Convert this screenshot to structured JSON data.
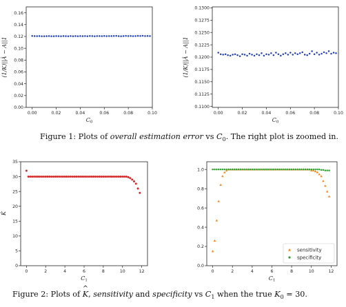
{
  "caption1": {
    "prefix": "Figure 1:  Plots of ",
    "emph": "overall estimation error",
    "middle": " vs ",
    "var": "C",
    "sub": "0",
    "suffix": ".  The right plot is zoomed in."
  },
  "caption2": {
    "prefix": "Figure 2:  Plots of ",
    "khat": "K",
    "comma": ", ",
    "emph1": "sensitivity",
    "and": " and ",
    "emph2": "specificity",
    "vs": " vs ",
    "var": "C",
    "sub": "1",
    "when": " when the true ",
    "kvar": "K",
    "ksub": "0",
    "eq": " = 30."
  },
  "chart_data": [
    {
      "id": "fig1-left",
      "type": "scatter",
      "xlabel": "C0",
      "ylabel": "(1/K)||Â − A||1",
      "xlim": [
        -0.005,
        0.1
      ],
      "ylim": [
        0.0,
        0.17
      ],
      "xticks": [
        "0.00",
        "0.02",
        "0.04",
        "0.06",
        "0.08",
        "0.10"
      ],
      "xtick_values": [
        0.0,
        0.02,
        0.04,
        0.06,
        0.08,
        0.1
      ],
      "yticks": [
        "0.00",
        "0.02",
        "0.04",
        "0.06",
        "0.08",
        "0.10",
        "0.12",
        "0.14",
        "0.16"
      ],
      "ytick_values": [
        0.0,
        0.02,
        0.04,
        0.06,
        0.08,
        0.1,
        0.12,
        0.14,
        0.16
      ],
      "series": [
        {
          "color": "#1f3fbf",
          "x": [
            0.0,
            0.002,
            0.004,
            0.006,
            0.008,
            0.01,
            0.012,
            0.014,
            0.016,
            0.018,
            0.02,
            0.022,
            0.024,
            0.026,
            0.028,
            0.03,
            0.032,
            0.034,
            0.036,
            0.038,
            0.04,
            0.042,
            0.044,
            0.046,
            0.048,
            0.05,
            0.052,
            0.054,
            0.056,
            0.058,
            0.06,
            0.062,
            0.064,
            0.066,
            0.068,
            0.07,
            0.072,
            0.074,
            0.076,
            0.078,
            0.08,
            0.082,
            0.084,
            0.086,
            0.088,
            0.09,
            0.092,
            0.094,
            0.096,
            0.098
          ],
          "y": [
            0.1208,
            0.1206,
            0.1205,
            0.1206,
            0.1204,
            0.1203,
            0.1205,
            0.1206,
            0.1204,
            0.1203,
            0.1206,
            0.1205,
            0.1203,
            0.1207,
            0.1205,
            0.1203,
            0.1206,
            0.1204,
            0.1207,
            0.1203,
            0.1206,
            0.1205,
            0.1207,
            0.1204,
            0.1208,
            0.1206,
            0.1203,
            0.1206,
            0.1207,
            0.1205,
            0.1208,
            0.1205,
            0.1207,
            0.1206,
            0.1208,
            0.1209,
            0.1205,
            0.1204,
            0.1207,
            0.121,
            0.1206,
            0.1208,
            0.1205,
            0.1207,
            0.1209,
            0.1208,
            0.1211,
            0.1207,
            0.1208,
            0.1207
          ]
        }
      ]
    },
    {
      "id": "fig1-right",
      "type": "scatter",
      "xlabel": "C0",
      "ylabel": "(1/K)||Â − A||1",
      "xlim": [
        -0.005,
        0.1
      ],
      "ylim": [
        0.1098,
        0.1302
      ],
      "xticks": [
        "0.00",
        "0.02",
        "0.04",
        "0.06",
        "0.08",
        "0.10"
      ],
      "xtick_values": [
        0.0,
        0.02,
        0.04,
        0.06,
        0.08,
        0.1
      ],
      "yticks": [
        "0.1100",
        "0.1125",
        "0.1150",
        "0.1175",
        "0.1200",
        "0.1225",
        "0.1250",
        "0.1275",
        "0.1300"
      ],
      "ytick_values": [
        0.11,
        0.1125,
        0.115,
        0.1175,
        0.12,
        0.1225,
        0.125,
        0.1275,
        0.13
      ],
      "series": [
        {
          "color": "#1f3fbf",
          "x": [
            0.0,
            0.002,
            0.004,
            0.006,
            0.008,
            0.01,
            0.012,
            0.014,
            0.016,
            0.018,
            0.02,
            0.022,
            0.024,
            0.026,
            0.028,
            0.03,
            0.032,
            0.034,
            0.036,
            0.038,
            0.04,
            0.042,
            0.044,
            0.046,
            0.048,
            0.05,
            0.052,
            0.054,
            0.056,
            0.058,
            0.06,
            0.062,
            0.064,
            0.066,
            0.068,
            0.07,
            0.072,
            0.074,
            0.076,
            0.078,
            0.08,
            0.082,
            0.084,
            0.086,
            0.088,
            0.09,
            0.092,
            0.094,
            0.096,
            0.098
          ],
          "y": [
            0.1209,
            0.1206,
            0.1205,
            0.1206,
            0.1204,
            0.1203,
            0.1205,
            0.1206,
            0.1204,
            0.1202,
            0.1206,
            0.1205,
            0.1203,
            0.1207,
            0.1205,
            0.1203,
            0.1206,
            0.1204,
            0.1208,
            0.1203,
            0.1206,
            0.1205,
            0.1208,
            0.1204,
            0.1209,
            0.1206,
            0.1203,
            0.1206,
            0.1208,
            0.1205,
            0.1209,
            0.1205,
            0.1208,
            0.1206,
            0.1208,
            0.121,
            0.1205,
            0.1204,
            0.1207,
            0.1212,
            0.1206,
            0.1209,
            0.1205,
            0.1207,
            0.121,
            0.1208,
            0.1212,
            0.1207,
            0.1209,
            0.1208
          ]
        }
      ]
    },
    {
      "id": "fig2-left",
      "type": "scatter",
      "xlabel": "C1",
      "ylabel": "K̂",
      "xlim": [
        -0.6,
        12.6
      ],
      "ylim": [
        0,
        35
      ],
      "xticks": [
        "0",
        "2",
        "4",
        "6",
        "8",
        "10",
        "12"
      ],
      "xtick_values": [
        0,
        2,
        4,
        6,
        8,
        10,
        12
      ],
      "yticks": [
        "0",
        "5",
        "10",
        "15",
        "20",
        "25",
        "30",
        "35"
      ],
      "ytick_values": [
        0,
        5,
        10,
        15,
        20,
        25,
        30,
        35
      ],
      "series": [
        {
          "color": "#d62728",
          "x": [
            0.0,
            0.2,
            0.4,
            0.6,
            0.8,
            1.0,
            1.2,
            1.4,
            1.6,
            1.8,
            2.0,
            2.2,
            2.4,
            2.6,
            2.8,
            3.0,
            3.2,
            3.4,
            3.6,
            3.8,
            4.0,
            4.2,
            4.4,
            4.6,
            4.8,
            5.0,
            5.2,
            5.4,
            5.6,
            5.8,
            6.0,
            6.2,
            6.4,
            6.6,
            6.8,
            7.0,
            7.2,
            7.4,
            7.6,
            7.8,
            8.0,
            8.2,
            8.4,
            8.6,
            8.8,
            9.0,
            9.2,
            9.4,
            9.6,
            9.8,
            10.0,
            10.2,
            10.4,
            10.6,
            10.8,
            11.0,
            11.2,
            11.4,
            11.6,
            11.8
          ],
          "y": [
            32,
            30,
            30,
            30,
            30,
            30,
            30,
            30,
            30,
            30,
            30,
            30,
            30,
            30,
            30,
            30,
            30,
            30,
            30,
            30,
            30,
            30,
            30,
            30,
            30,
            30,
            30,
            30,
            30,
            30,
            30,
            30,
            30,
            30,
            30,
            30,
            30,
            30,
            30,
            30,
            30,
            30,
            30,
            30,
            30,
            30,
            30,
            30,
            30,
            30,
            30,
            30,
            30,
            29.8,
            29.5,
            29,
            28.4,
            27.6,
            26,
            24.5
          ]
        }
      ]
    },
    {
      "id": "fig2-right",
      "type": "scatter",
      "xlabel": "C1",
      "ylabel": "",
      "xlim": [
        -0.6,
        12.6
      ],
      "ylim": [
        0.0,
        1.08
      ],
      "xticks": [
        "0",
        "2",
        "4",
        "6",
        "8",
        "10",
        "12"
      ],
      "xtick_values": [
        0,
        2,
        4,
        6,
        8,
        10,
        12
      ],
      "yticks": [
        "0.0",
        "0.2",
        "0.4",
        "0.6",
        "0.8",
        "1.0"
      ],
      "ytick_values": [
        0.0,
        0.2,
        0.4,
        0.6,
        0.8,
        1.0
      ],
      "legend": "bottom-right",
      "series": [
        {
          "name": "sensitivity",
          "marker": "triangle",
          "color": "#ff7f0e",
          "x": [
            0.0,
            0.2,
            0.4,
            0.6,
            0.8,
            1.0,
            1.2,
            1.4,
            1.6,
            1.8,
            2.0,
            2.2,
            2.4,
            2.6,
            2.8,
            3.0,
            3.2,
            3.4,
            3.6,
            3.8,
            4.0,
            4.2,
            4.4,
            4.6,
            4.8,
            5.0,
            5.2,
            5.4,
            5.6,
            5.8,
            6.0,
            6.2,
            6.4,
            6.6,
            6.8,
            7.0,
            7.2,
            7.4,
            7.6,
            7.8,
            8.0,
            8.2,
            8.4,
            8.6,
            8.8,
            9.0,
            9.2,
            9.4,
            9.6,
            9.8,
            10.0,
            10.2,
            10.4,
            10.6,
            10.8,
            11.0,
            11.2,
            11.4,
            11.6,
            11.8
          ],
          "y": [
            0.15,
            0.26,
            0.47,
            0.67,
            0.84,
            0.93,
            0.97,
            0.99,
            1.0,
            1.0,
            1.0,
            1.0,
            1.0,
            1.0,
            1.0,
            1.0,
            1.0,
            1.0,
            1.0,
            1.0,
            1.0,
            1.0,
            1.0,
            1.0,
            1.0,
            1.0,
            1.0,
            1.0,
            1.0,
            1.0,
            1.0,
            1.0,
            1.0,
            1.0,
            1.0,
            1.0,
            1.0,
            1.0,
            1.0,
            1.0,
            1.0,
            1.0,
            1.0,
            1.0,
            1.0,
            1.0,
            1.0,
            1.0,
            1.0,
            1.0,
            0.99,
            0.99,
            0.98,
            0.97,
            0.95,
            0.93,
            0.88,
            0.83,
            0.77,
            0.72
          ]
        },
        {
          "name": "specificity",
          "marker": "circle",
          "color": "#2ca02c",
          "x": [
            0.0,
            0.2,
            0.4,
            0.6,
            0.8,
            1.0,
            1.2,
            1.4,
            1.6,
            1.8,
            2.0,
            2.2,
            2.4,
            2.6,
            2.8,
            3.0,
            3.2,
            3.4,
            3.6,
            3.8,
            4.0,
            4.2,
            4.4,
            4.6,
            4.8,
            5.0,
            5.2,
            5.4,
            5.6,
            5.8,
            6.0,
            6.2,
            6.4,
            6.6,
            6.8,
            7.0,
            7.2,
            7.4,
            7.6,
            7.8,
            8.0,
            8.2,
            8.4,
            8.6,
            8.8,
            9.0,
            9.2,
            9.4,
            9.6,
            9.8,
            10.0,
            10.2,
            10.4,
            10.6,
            10.8,
            11.0,
            11.2,
            11.4,
            11.6,
            11.8
          ],
          "y": [
            1.0,
            1.0,
            1.0,
            1.0,
            1.0,
            1.0,
            1.0,
            1.0,
            1.0,
            1.0,
            1.0,
            1.0,
            1.0,
            1.0,
            1.0,
            1.0,
            1.0,
            1.0,
            1.0,
            1.0,
            1.0,
            1.0,
            1.0,
            1.0,
            1.0,
            1.0,
            1.0,
            1.0,
            1.0,
            1.0,
            1.0,
            1.0,
            1.0,
            1.0,
            1.0,
            1.0,
            1.0,
            1.0,
            1.0,
            1.0,
            1.0,
            1.0,
            1.0,
            1.0,
            1.0,
            1.0,
            1.0,
            1.0,
            1.0,
            1.0,
            1.0,
            1.0,
            1.0,
            1.0,
            1.0,
            0.995,
            0.995,
            0.99,
            0.99,
            0.99
          ]
        }
      ]
    }
  ]
}
